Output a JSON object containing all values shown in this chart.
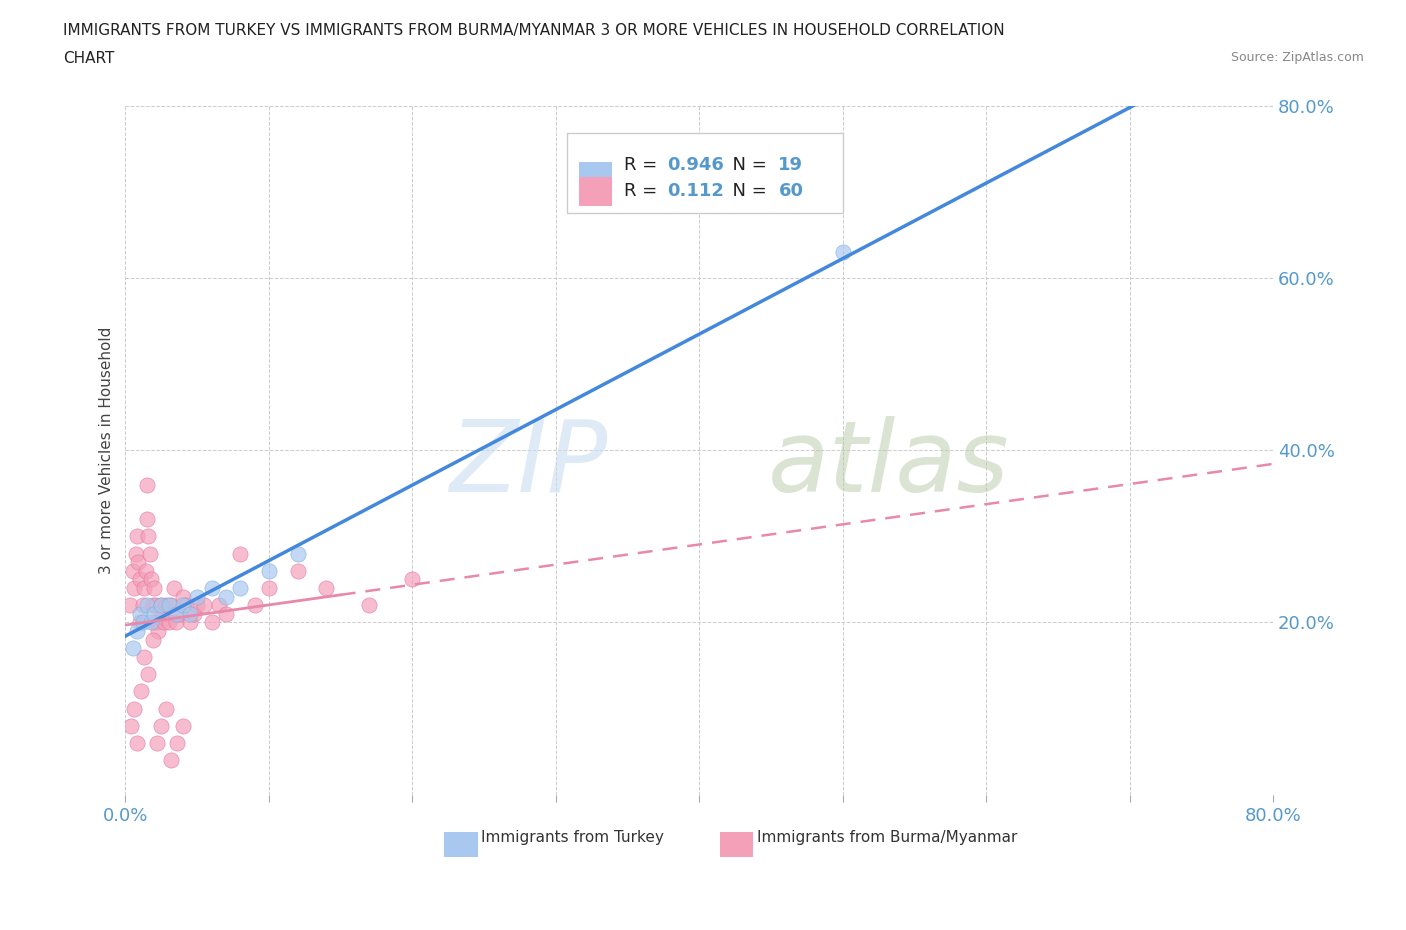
{
  "title_line1": "IMMIGRANTS FROM TURKEY VS IMMIGRANTS FROM BURMA/MYANMAR 3 OR MORE VEHICLES IN HOUSEHOLD CORRELATION",
  "title_line2": "CHART",
  "source_text": "Source: ZipAtlas.com",
  "watermark_zip": "ZIP",
  "watermark_atlas": "atlas",
  "ylabel": "3 or more Vehicles in Household",
  "xlim": [
    0.0,
    0.8
  ],
  "ylim": [
    0.0,
    0.8
  ],
  "x_ticks": [
    0.0,
    0.1,
    0.2,
    0.3,
    0.4,
    0.5,
    0.6,
    0.7,
    0.8
  ],
  "y_ticks": [
    0.0,
    0.2,
    0.4,
    0.6,
    0.8
  ],
  "turkey_color": "#a8c8f0",
  "turkey_edge_color": "#7aaad8",
  "burma_color": "#f4a0b8",
  "burma_edge_color": "#e070a0",
  "turkey_line_color": "#4488dd",
  "burma_line_color": "#e888aa",
  "burma_solid_line_color": "#e888aa",
  "tick_color": "#5599cc",
  "grid_color": "#cccccc",
  "background_color": "#ffffff",
  "turkey_R": 0.946,
  "turkey_N": 19,
  "burma_R": 0.112,
  "burma_N": 60,
  "turkey_scatter_x": [
    0.005,
    0.008,
    0.01,
    0.012,
    0.015,
    0.018,
    0.02,
    0.025,
    0.03,
    0.035,
    0.04,
    0.045,
    0.05,
    0.06,
    0.07,
    0.08,
    0.1,
    0.12,
    0.5
  ],
  "turkey_scatter_y": [
    0.17,
    0.19,
    0.21,
    0.2,
    0.22,
    0.2,
    0.21,
    0.22,
    0.22,
    0.21,
    0.22,
    0.21,
    0.23,
    0.24,
    0.23,
    0.24,
    0.26,
    0.28,
    0.63
  ],
  "burma_scatter_x": [
    0.003,
    0.005,
    0.006,
    0.007,
    0.008,
    0.009,
    0.01,
    0.01,
    0.012,
    0.013,
    0.014,
    0.015,
    0.015,
    0.016,
    0.017,
    0.018,
    0.019,
    0.02,
    0.02,
    0.021,
    0.022,
    0.023,
    0.025,
    0.026,
    0.027,
    0.028,
    0.03,
    0.032,
    0.034,
    0.035,
    0.038,
    0.04,
    0.042,
    0.045,
    0.048,
    0.05,
    0.055,
    0.06,
    0.065,
    0.07,
    0.08,
    0.09,
    0.1,
    0.12,
    0.14,
    0.17,
    0.2,
    0.004,
    0.006,
    0.008,
    0.011,
    0.013,
    0.016,
    0.019,
    0.022,
    0.025,
    0.028,
    0.032,
    0.036,
    0.04
  ],
  "burma_scatter_y": [
    0.22,
    0.26,
    0.24,
    0.28,
    0.3,
    0.27,
    0.25,
    0.2,
    0.22,
    0.24,
    0.26,
    0.32,
    0.36,
    0.3,
    0.28,
    0.25,
    0.22,
    0.2,
    0.24,
    0.22,
    0.2,
    0.19,
    0.22,
    0.21,
    0.2,
    0.22,
    0.2,
    0.22,
    0.24,
    0.2,
    0.21,
    0.23,
    0.22,
    0.2,
    0.21,
    0.22,
    0.22,
    0.2,
    0.22,
    0.21,
    0.28,
    0.22,
    0.24,
    0.26,
    0.24,
    0.22,
    0.25,
    0.08,
    0.1,
    0.06,
    0.12,
    0.16,
    0.14,
    0.18,
    0.06,
    0.08,
    0.1,
    0.04,
    0.06,
    0.08
  ]
}
